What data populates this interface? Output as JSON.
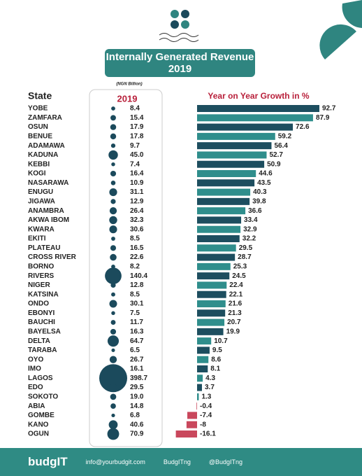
{
  "chart_data": {
    "type": "bar",
    "title": "Internally Generated Revenue 2019",
    "unit_note": "(NGN Billion)",
    "category_header": "State",
    "categories": [
      "YOBE",
      "ZAMFARA",
      "OSUN",
      "BENUE",
      "ADAMAWA",
      "KADUNA",
      "KEBBI",
      "KOGI",
      "NASARAWA",
      "ENUGU",
      "JIGAWA",
      "ANAMBRA",
      "AKWA IBOM",
      "KWARA",
      "EKITI",
      "PLATEAU",
      "CROSS RIVER",
      "BORNO",
      "RIVERS",
      "NIGER",
      "KATSINA",
      "ONDO",
      "EBONYI",
      "BAUCHI",
      "BAYELSA",
      "DELTA",
      "TARABA",
      "OYO",
      "IMO",
      "LAGOS",
      "EDO",
      "SOKOTO",
      "ABIA",
      "GOMBE",
      "KANO",
      "OGUN"
    ],
    "series": [
      {
        "name": "2019",
        "color": "#1b4a5c",
        "values": [
          8.4,
          15.4,
          17.9,
          17.8,
          9.7,
          45.0,
          7.4,
          16.4,
          10.9,
          31.1,
          12.9,
          26.4,
          32.3,
          30.6,
          8.5,
          16.5,
          22.6,
          8.2,
          140.4,
          12.8,
          8.5,
          30.1,
          7.5,
          11.7,
          16.3,
          64.7,
          6.5,
          26.7,
          16.1,
          398.7,
          29.5,
          19.0,
          14.8,
          6.8,
          40.6,
          70.9
        ],
        "value_labels": [
          "8.4",
          "15.4",
          "17.9",
          "17.8",
          "9.7",
          "45.0",
          "7.4",
          "16.4",
          "10.9",
          "31.1",
          "12.9",
          "26.4",
          "32.3",
          "30.6",
          "8.5",
          "16.5",
          "22.6",
          "8.2",
          "140.4",
          "12.8",
          "8.5",
          "30.1",
          "7.5",
          "11.7",
          "16.3",
          "64.7",
          "6.5",
          "26.7",
          "16.1",
          "398.7",
          "29.5",
          "19.0",
          "14.8",
          "6.8",
          "40.6",
          "70.9"
        ]
      },
      {
        "name": "Year on Year Growth in %",
        "colors": [
          "#1d4e5f",
          "#2f8e8c"
        ],
        "negative_color": "#c9475c",
        "values": [
          92.7,
          87.9,
          72.6,
          59.2,
          56.4,
          52.7,
          50.9,
          44.6,
          43.5,
          40.3,
          39.8,
          36.6,
          33.4,
          32.9,
          32.2,
          29.5,
          28.7,
          25.3,
          24.5,
          22.4,
          22.1,
          21.6,
          21.3,
          20.7,
          19.9,
          10.7,
          9.5,
          8.6,
          8.1,
          4.3,
          3.7,
          1.3,
          -0.4,
          -7.4,
          -8.0,
          -16.1
        ]
      }
    ]
  },
  "footer": {
    "brand": "budgIT",
    "email": "info@yourbudgit.com",
    "facebook": "BudgITng",
    "twitter": "@BudgITng"
  }
}
